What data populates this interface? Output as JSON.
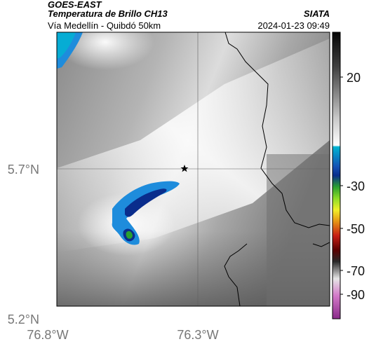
{
  "header": {
    "satellite": "GOES-EAST",
    "product": "Temperatura de Brillo CH13",
    "organization": "SIATA",
    "route": "Vía Medellín - Quibdó 50km",
    "timestamp": "2024-01-23 09:49"
  },
  "map": {
    "lat_ticks": [
      "5.7°N",
      "5.2°N"
    ],
    "lon_ticks": [
      "76.8°W",
      "76.3°W"
    ],
    "marker": "star-icon"
  },
  "colorbar": {
    "tick_labels": [
      "20",
      "-30",
      "-50",
      "-70",
      "-90"
    ],
    "stops": [
      {
        "value": 30,
        "color": "#000000"
      },
      {
        "value": -20,
        "color": "#ffffff"
      },
      {
        "value": -22,
        "color": "#00a0c8"
      },
      {
        "value": -32,
        "color": "#0a2d8c"
      },
      {
        "value": -38,
        "color": "#2aa030"
      },
      {
        "value": -44,
        "color": "#d2e628"
      },
      {
        "value": -52,
        "color": "#e69614"
      },
      {
        "value": -60,
        "color": "#c81e14"
      },
      {
        "value": -68,
        "color": "#3c0000"
      },
      {
        "value": -76,
        "color": "#dcdcdc"
      },
      {
        "value": -82,
        "color": "#c864b4"
      },
      {
        "value": -92,
        "color": "#7a1f7a"
      }
    ]
  },
  "colors": {
    "cloud_cold": "#1e8cdc",
    "cloud_core": "#0a2d8c",
    "cloud_peak": "#2aa030",
    "border": "#000000"
  }
}
